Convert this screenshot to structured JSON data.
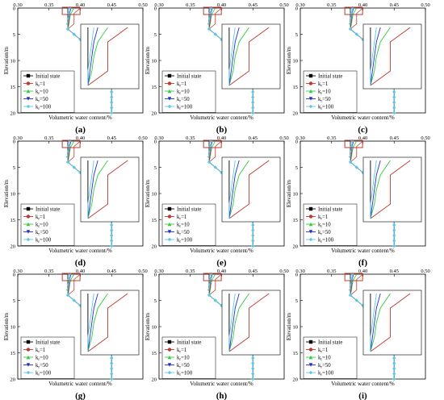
{
  "xlabel": "Volumetric water content/%",
  "ylabel": "Elevation/m",
  "x_ticks": [
    "0.30",
    "0.35",
    "0.40",
    "0.45",
    "0.50"
  ],
  "y_ticks": [
    "0",
    "5",
    "10",
    "15",
    "20"
  ],
  "legend": [
    "Initial state",
    "k",
    "k",
    "k",
    "k"
  ],
  "legend_ks": [
    "=1",
    "=10",
    "=50",
    "=100"
  ],
  "legend_sub": "r",
  "series_colors": {
    "Initial state": "#000000",
    "k_r=1": "#c0392b",
    "k_r=10": "#2ecc40",
    "k_r=50": "#1f2fd0",
    "k_r=100": "#5bc8e8"
  },
  "highlight_color": "#c0392b",
  "panels": [
    {
      "label": "(a)"
    },
    {
      "label": "(b)"
    },
    {
      "label": "(c)"
    },
    {
      "label": "(d)"
    },
    {
      "label": "(e)"
    },
    {
      "label": "(f)"
    },
    {
      "label": "(g)"
    },
    {
      "label": "(h)"
    },
    {
      "label": "(i)"
    }
  ],
  "chart_data": {
    "type": "line",
    "xlabel": "Volumetric water content/%",
    "ylabel": "Elevation/m",
    "xlim": [
      0.3,
      0.5
    ],
    "ylim": [
      20,
      0
    ],
    "grid": false,
    "legend_position": "left",
    "series": [
      {
        "name": "Initial state",
        "x": [
          0.38,
          0.38,
          0.38,
          0.38,
          0.38,
          0.39,
          0.4,
          0.41,
          0.42,
          0.43,
          0.44,
          0.45,
          0.45
        ],
        "y": [
          0,
          1,
          2,
          3,
          4,
          5,
          6,
          7,
          8,
          9,
          10,
          11,
          20
        ]
      },
      {
        "name": "k_r=1",
        "x": [
          0.4,
          0.39,
          0.39,
          0.39,
          0.38,
          0.39,
          0.4,
          0.41,
          0.42,
          0.43,
          0.44,
          0.45,
          0.45
        ],
        "y": [
          0,
          1,
          2,
          3,
          4,
          5,
          6,
          7,
          8,
          9,
          10,
          11,
          20
        ]
      },
      {
        "name": "k_r=10",
        "x": [
          0.39,
          0.385,
          0.383,
          0.382,
          0.38,
          0.39,
          0.4,
          0.41,
          0.42,
          0.43,
          0.44,
          0.45,
          0.45
        ],
        "y": [
          0,
          1,
          2,
          3,
          4,
          5,
          6,
          7,
          8,
          9,
          10,
          11,
          20
        ]
      },
      {
        "name": "k_r=50",
        "x": [
          0.385,
          0.383,
          0.382,
          0.381,
          0.38,
          0.39,
          0.4,
          0.41,
          0.42,
          0.43,
          0.44,
          0.45,
          0.45
        ],
        "y": [
          0,
          1,
          2,
          3,
          4,
          5,
          6,
          7,
          8,
          9,
          10,
          11,
          20
        ]
      },
      {
        "name": "k_r=100",
        "x": [
          0.383,
          0.382,
          0.381,
          0.38,
          0.38,
          0.39,
          0.4,
          0.41,
          0.42,
          0.43,
          0.44,
          0.45,
          0.45
        ],
        "y": [
          0,
          1,
          2,
          3,
          4,
          5,
          6,
          7,
          8,
          9,
          10,
          11,
          20
        ]
      }
    ]
  }
}
